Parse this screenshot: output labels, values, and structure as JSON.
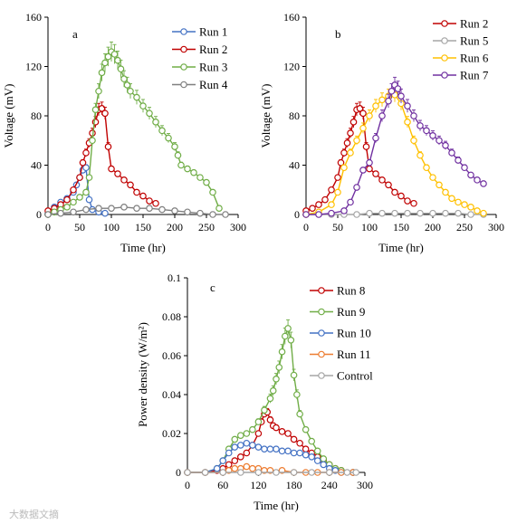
{
  "watermark": "大数据文摘",
  "chart_data": [
    {
      "type": "line",
      "panel": "a",
      "xlabel": "Time (hr)",
      "ylabel": "Voltage (mV)",
      "xlim": [
        0,
        300
      ],
      "ylim": [
        0,
        160
      ],
      "xticks": [
        0,
        50,
        100,
        150,
        200,
        250,
        300
      ],
      "yticks": [
        0,
        40,
        80,
        120,
        160
      ],
      "tick_labels_x": [
        "0",
        "50",
        "100",
        "150",
        "200",
        "250",
        "300"
      ],
      "tick_labels_y": [
        "0",
        "40",
        "80",
        "120",
        "160"
      ],
      "grid": false,
      "legend_position": "top-right",
      "marker": "open-circle",
      "error_bars": true,
      "series": [
        {
          "name": "Run 1",
          "color": "#4472C4",
          "x": [
            0,
            10,
            20,
            30,
            40,
            45,
            50,
            55,
            60,
            65,
            70,
            80,
            90
          ],
          "y": [
            1,
            6,
            10,
            13,
            18,
            24,
            30,
            36,
            38,
            12,
            4,
            2,
            1
          ]
        },
        {
          "name": "Run 2",
          "color": "#C00000",
          "x": [
            0,
            10,
            20,
            30,
            40,
            50,
            55,
            60,
            65,
            70,
            75,
            80,
            85,
            90,
            95,
            100,
            110,
            120,
            130,
            140,
            150,
            160,
            170
          ],
          "y": [
            3,
            5,
            8,
            12,
            20,
            30,
            42,
            50,
            58,
            66,
            75,
            85,
            86,
            82,
            55,
            37,
            33,
            28,
            24,
            18,
            15,
            11,
            9
          ]
        },
        {
          "name": "Run 3",
          "color": "#70AD47",
          "x": [
            0,
            10,
            20,
            30,
            40,
            50,
            60,
            65,
            70,
            75,
            80,
            85,
            90,
            95,
            100,
            105,
            110,
            115,
            120,
            125,
            130,
            140,
            150,
            160,
            170,
            180,
            190,
            200,
            205,
            210,
            220,
            230,
            240,
            250,
            260,
            270
          ],
          "y": [
            0,
            2,
            4,
            6,
            10,
            14,
            18,
            30,
            60,
            85,
            100,
            115,
            123,
            128,
            132,
            130,
            125,
            118,
            110,
            105,
            100,
            95,
            88,
            82,
            75,
            68,
            62,
            55,
            48,
            40,
            37,
            34,
            30,
            26,
            18,
            5
          ]
        },
        {
          "name": "Run 4",
          "color": "#7F7F7F",
          "x": [
            0,
            20,
            40,
            60,
            80,
            100,
            120,
            140,
            160,
            180,
            200,
            220,
            240,
            260,
            280
          ],
          "y": [
            0,
            1,
            2,
            4,
            5,
            5,
            6,
            5,
            5,
            4,
            3,
            2,
            1,
            0,
            0
          ]
        }
      ]
    },
    {
      "type": "line",
      "panel": "b",
      "xlabel": "Time (hr)",
      "ylabel": "Voltage (mV)",
      "xlim": [
        0,
        300
      ],
      "ylim": [
        0,
        160
      ],
      "xticks": [
        0,
        50,
        100,
        150,
        200,
        250,
        300
      ],
      "yticks": [
        0,
        40,
        80,
        120,
        160
      ],
      "tick_labels_x": [
        "0",
        "50",
        "100",
        "150",
        "200",
        "250",
        "300"
      ],
      "tick_labels_y": [
        "0",
        "40",
        "80",
        "120",
        "160"
      ],
      "grid": false,
      "legend_position": "top-right",
      "marker": "open-circle",
      "error_bars": true,
      "series": [
        {
          "name": "Run 2",
          "color": "#C00000",
          "x": [
            0,
            10,
            20,
            30,
            40,
            50,
            55,
            60,
            65,
            70,
            75,
            80,
            85,
            90,
            95,
            100,
            110,
            120,
            130,
            140,
            150,
            160,
            170
          ],
          "y": [
            3,
            5,
            8,
            12,
            20,
            30,
            42,
            50,
            58,
            66,
            75,
            85,
            86,
            82,
            55,
            37,
            33,
            28,
            24,
            18,
            15,
            11,
            9
          ]
        },
        {
          "name": "Run 5",
          "color": "#A5A5A5",
          "x": [
            0,
            20,
            40,
            60,
            80,
            100,
            120,
            140,
            160,
            180,
            200,
            220,
            240,
            260,
            280
          ],
          "y": [
            0,
            0,
            0,
            0,
            0,
            1,
            1,
            1,
            1,
            1,
            1,
            1,
            1,
            0,
            0
          ]
        },
        {
          "name": "Run 6",
          "color": "#FFC000",
          "x": [
            0,
            20,
            40,
            50,
            60,
            70,
            80,
            90,
            100,
            110,
            120,
            130,
            140,
            150,
            160,
            170,
            180,
            190,
            200,
            210,
            220,
            230,
            240,
            250,
            260,
            270,
            280
          ],
          "y": [
            0,
            2,
            8,
            18,
            38,
            50,
            60,
            70,
            80,
            88,
            93,
            96,
            97,
            90,
            75,
            60,
            48,
            38,
            30,
            24,
            18,
            13,
            10,
            8,
            6,
            3,
            1
          ]
        },
        {
          "name": "Run 7",
          "color": "#7030A0",
          "x": [
            0,
            20,
            40,
            60,
            70,
            80,
            90,
            100,
            110,
            120,
            130,
            135,
            140,
            145,
            150,
            160,
            170,
            180,
            190,
            200,
            210,
            220,
            230,
            240,
            250,
            260,
            270,
            280
          ],
          "y": [
            0,
            0,
            1,
            3,
            10,
            22,
            36,
            42,
            62,
            80,
            92,
            100,
            105,
            102,
            96,
            88,
            80,
            72,
            68,
            64,
            60,
            56,
            50,
            44,
            38,
            32,
            28,
            25
          ]
        }
      ]
    },
    {
      "type": "line",
      "panel": "c",
      "xlabel": "Time (hr)",
      "ylabel": "Power density (W/m²)",
      "xlim": [
        0,
        300
      ],
      "ylim": [
        0,
        0.1
      ],
      "xticks": [
        0,
        60,
        120,
        180,
        240,
        300
      ],
      "yticks": [
        0,
        0.02,
        0.04,
        0.06,
        0.08,
        0.1
      ],
      "tick_labels_x": [
        "0",
        "60",
        "120",
        "180",
        "240",
        "300"
      ],
      "tick_labels_y": [
        "0",
        "0.02",
        "0.04",
        "0.06",
        "0.08",
        "0.1"
      ],
      "grid": false,
      "legend_position": "top-right",
      "marker": "open-circle",
      "error_bars": true,
      "series": [
        {
          "name": "Run 8",
          "color": "#C00000",
          "x": [
            0,
            30,
            50,
            60,
            70,
            80,
            90,
            100,
            110,
            120,
            125,
            130,
            135,
            140,
            145,
            150,
            160,
            170,
            180,
            190,
            200,
            210,
            220,
            230,
            240,
            250,
            260,
            280
          ],
          "y": [
            0,
            0,
            0.001,
            0.002,
            0.004,
            0.006,
            0.008,
            0.01,
            0.014,
            0.02,
            0.026,
            0.03,
            0.031,
            0.027,
            0.024,
            0.023,
            0.021,
            0.02,
            0.017,
            0.015,
            0.012,
            0.01,
            0.008,
            0.006,
            0.004,
            0.002,
            0.001,
            0
          ]
        },
        {
          "name": "Run 9",
          "color": "#70AD47",
          "x": [
            0,
            30,
            50,
            60,
            70,
            80,
            90,
            100,
            110,
            120,
            130,
            140,
            145,
            150,
            155,
            160,
            165,
            170,
            175,
            180,
            185,
            190,
            200,
            210,
            220,
            230,
            240,
            250,
            260,
            280
          ],
          "y": [
            0,
            0,
            0.002,
            0.006,
            0.012,
            0.017,
            0.019,
            0.02,
            0.022,
            0.026,
            0.032,
            0.038,
            0.042,
            0.048,
            0.054,
            0.062,
            0.07,
            0.074,
            0.068,
            0.05,
            0.04,
            0.03,
            0.022,
            0.016,
            0.011,
            0.007,
            0.004,
            0.002,
            0.001,
            0
          ]
        },
        {
          "name": "Run 10",
          "color": "#4472C4",
          "x": [
            0,
            30,
            50,
            60,
            70,
            80,
            90,
            100,
            110,
            120,
            130,
            140,
            150,
            160,
            170,
            180,
            190,
            200,
            210,
            220,
            230,
            240,
            250,
            260,
            280
          ],
          "y": [
            0,
            0,
            0.002,
            0.006,
            0.01,
            0.013,
            0.014,
            0.015,
            0.014,
            0.013,
            0.012,
            0.012,
            0.012,
            0.011,
            0.011,
            0.01,
            0.01,
            0.009,
            0.008,
            0.006,
            0.004,
            0.002,
            0.001,
            0,
            0
          ]
        },
        {
          "name": "Run 11",
          "color": "#ED7D31",
          "x": [
            0,
            30,
            60,
            70,
            80,
            90,
            100,
            110,
            120,
            130,
            140,
            160,
            180,
            200,
            220,
            240,
            260,
            280
          ],
          "y": [
            0,
            0,
            0,
            0.001,
            0.002,
            0.002,
            0.003,
            0.002,
            0.002,
            0.001,
            0.001,
            0.001,
            0,
            0,
            0,
            0,
            0,
            0
          ]
        },
        {
          "name": "Control",
          "color": "#A5A5A5",
          "x": [
            0,
            30,
            60,
            90,
            120,
            150,
            180,
            210,
            240,
            270,
            285
          ],
          "y": [
            0,
            0,
            0,
            0,
            0,
            0,
            0,
            0,
            0,
            0,
            0
          ]
        }
      ]
    }
  ]
}
